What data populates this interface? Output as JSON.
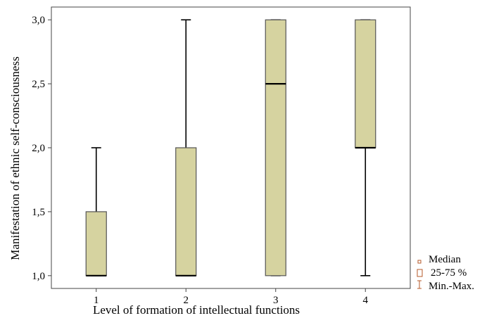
{
  "chart_data": {
    "type": "box",
    "xlabel": "Level of formation of intellectual functions",
    "ylabel": "Manifestation of ethnic self-consciousness",
    "categories": [
      "1",
      "2",
      "3",
      "4"
    ],
    "ylim": [
      0.9,
      3.1
    ],
    "yticks": [
      1.0,
      1.5,
      2.0,
      2.5,
      3.0
    ],
    "ytick_labels": [
      "1,0",
      "1,5",
      "2,0",
      "2,5",
      "3,0"
    ],
    "boxes": [
      {
        "category": "1",
        "min": 1.0,
        "q1": 1.0,
        "median": 1.0,
        "q3": 1.5,
        "max": 2.0
      },
      {
        "category": "2",
        "min": 1.0,
        "q1": 1.0,
        "median": 1.0,
        "q3": 2.0,
        "max": 3.0
      },
      {
        "category": "3",
        "min": 1.0,
        "q1": 1.0,
        "median": 2.5,
        "q3": 3.0,
        "max": 3.0
      },
      {
        "category": "4",
        "min": 1.0,
        "q1": 2.0,
        "median": 2.0,
        "q3": 3.0,
        "max": 3.0
      }
    ],
    "legend": {
      "position": "bottom-right",
      "items": [
        {
          "symbol": "median",
          "label": "Median"
        },
        {
          "symbol": "box",
          "label": "25-75 %"
        },
        {
          "symbol": "whisker",
          "label": "Min.-Max."
        }
      ]
    },
    "colors": {
      "box_fill": "#d6d3a0",
      "box_stroke": "#555555",
      "legend_symbol": "#b5582a"
    },
    "grid": false
  }
}
